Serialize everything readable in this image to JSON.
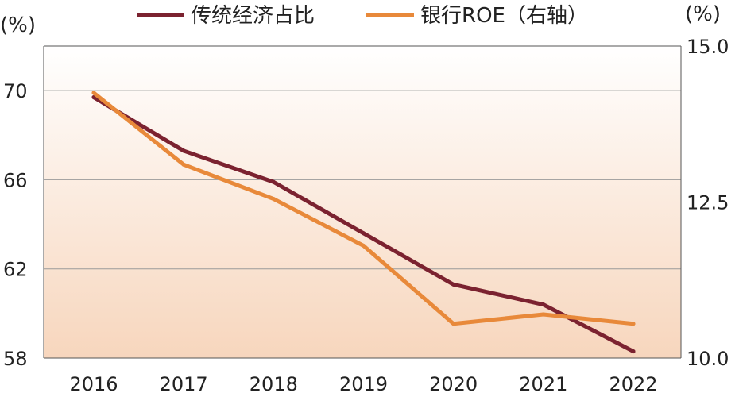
{
  "chart_data": {
    "type": "line",
    "categories": [
      "2016",
      "2017",
      "2018",
      "2019",
      "2020",
      "2021",
      "2022"
    ],
    "series": [
      {
        "name": "传统经济占比",
        "axis": "left",
        "color": "#7b2230",
        "values": [
          69.7,
          67.3,
          65.9,
          63.6,
          61.3,
          60.4,
          58.3
        ]
      },
      {
        "name": "银行ROE（右轴）",
        "axis": "right",
        "color": "#e8893a",
        "values": [
          14.25,
          13.1,
          12.55,
          11.8,
          10.55,
          10.7,
          10.55
        ]
      }
    ],
    "y_left": {
      "unit": "(%)",
      "ylim": [
        58,
        72
      ],
      "ticks": [
        "58",
        "62",
        "66",
        "70"
      ]
    },
    "y_right": {
      "unit": "(%)",
      "ylim": [
        10.0,
        15.0
      ],
      "ticks": [
        "10.0",
        "12.5",
        "15.0"
      ]
    },
    "grid": true,
    "legend_position": "top"
  }
}
